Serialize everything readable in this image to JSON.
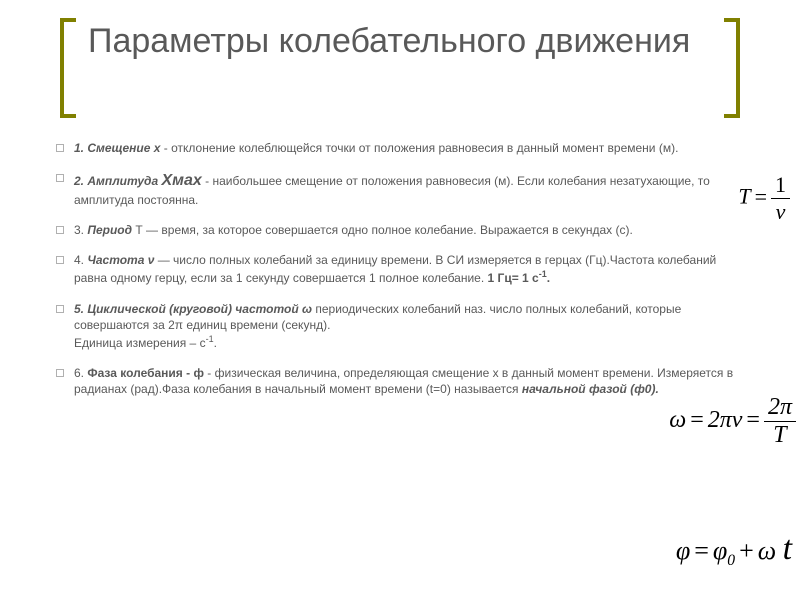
{
  "title": "Параметры колебательного движения",
  "items": [
    {
      "lead": "1. Смещение х",
      "rest": " - отклонение колеблющейся точки от положения равновесия в данный момент времени (м)."
    },
    {
      "lead": "2. Амплитуда ",
      "sym": "Хмах",
      "rest": " - наибольшее смещение от положения равновесия (м). Если колебания незатухающие, то амплитуда постоянна."
    },
    {
      "plain1": "3. ",
      "lead": "Период",
      "plain2": " Т — время, за которое совершается одно полное колебание. Выражается в секундах (с)."
    },
    {
      "plain1": "4. ",
      "lead": "Частота  ν",
      "plain2": " — число полных колебаний за единицу времени. В СИ измеряется в герцах (Гц).Частота колебаний равна одному герцу, если за 1 секунду совершается 1 полное колебание. ",
      "bold2": "1 Гц= 1 с",
      "supexp": "-1",
      "tail": "."
    },
    {
      "lead": "5. Циклической (круговой) частотой ω",
      "rest": " периодических колебаний наз. число полных колебаний, которые совершаются за 2π единиц времени (секунд).",
      "line2": " Единица измерения – с",
      "supexp": "-1",
      "tail": "."
    },
    {
      "plain1": "6. ",
      "bold1": "Фаза колебания - ф",
      "plain2": " - физическая величина, определяющая смещение x в данный момент времени. Измеряется в радианах (рад).Фаза колебания в начальный момент времени (t=0) называется ",
      "lead": "начальной фазой (ф0)."
    }
  ],
  "formulas": {
    "f1": {
      "lhs": "T",
      "num": "1",
      "den": "ν"
    },
    "f2": {
      "lhs": "ω",
      "mid": "2πν",
      "num": "2π",
      "den": "T"
    },
    "f3": {
      "lhs": "φ",
      "p0": "φ",
      "sub0": "0",
      "op": "+",
      "wt": "ω",
      "t": "t"
    }
  },
  "colors": {
    "accent": "#808000",
    "text": "#595959",
    "bg": "#ffffff"
  }
}
